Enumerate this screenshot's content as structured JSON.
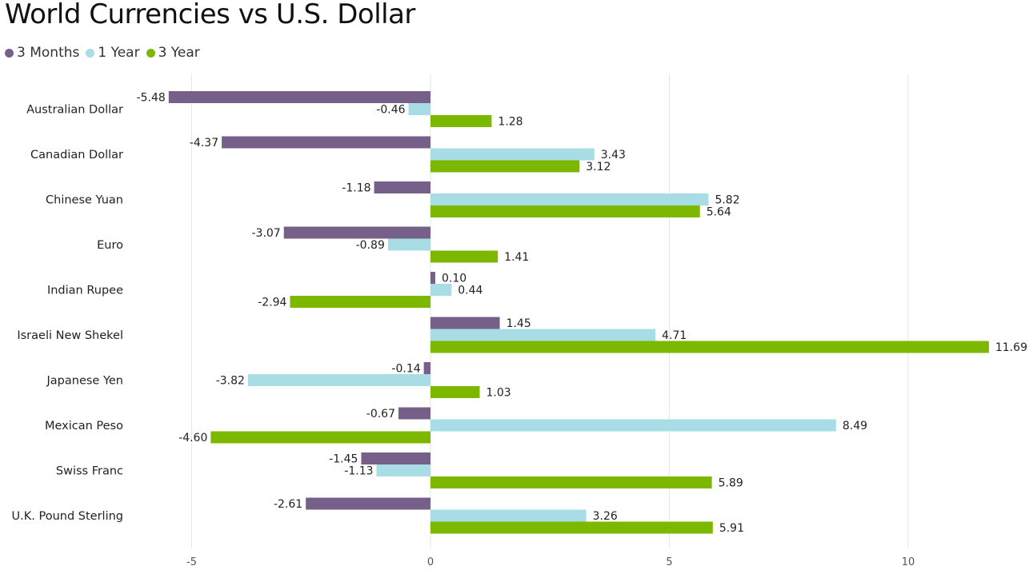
{
  "chart_data": {
    "type": "bar",
    "orientation": "horizontal",
    "title": "World Currencies vs U.S. Dollar",
    "categories": [
      "Australian Dollar",
      "Canadian Dollar",
      "Chinese Yuan",
      "Euro",
      "Indian Rupee",
      "Israeli New Shekel",
      "Japanese Yen",
      "Mexican Peso",
      "Swiss Franc",
      "U.K. Pound Sterling"
    ],
    "series": [
      {
        "name": "3 Months",
        "color": "#76608a",
        "values": [
          -5.48,
          -4.37,
          -1.18,
          -3.07,
          0.1,
          1.45,
          -0.14,
          -0.67,
          -1.45,
          -2.61
        ],
        "labels": [
          "-5.48",
          "-4.37",
          "-1.18",
          "-3.07",
          "0.10",
          "1.45",
          "-0.14",
          "-0.67",
          "-1.45",
          "-2.61"
        ]
      },
      {
        "name": "1 Year",
        "color": "#a8dde5",
        "values": [
          -0.46,
          3.43,
          5.82,
          -0.89,
          0.44,
          4.71,
          -3.82,
          8.49,
          -1.13,
          3.26
        ],
        "labels": [
          "-0.46",
          "3.43",
          "5.82",
          "-0.89",
          "0.44",
          "4.71",
          "-3.82",
          "8.49",
          "-1.13",
          "3.26"
        ]
      },
      {
        "name": "3 Year",
        "color": "#7cb800",
        "values": [
          1.28,
          3.12,
          5.64,
          1.41,
          -2.94,
          11.69,
          1.03,
          -4.6,
          5.89,
          5.91
        ],
        "labels": [
          "1.28",
          "3.12",
          "5.64",
          "1.41",
          "-2.94",
          "11.69",
          "1.03",
          "-4.60",
          "5.89",
          "5.91"
        ]
      }
    ],
    "x_ticks": [
      {
        "value": -5,
        "label": "-5"
      },
      {
        "value": 0,
        "label": "0"
      },
      {
        "value": 5,
        "label": "5"
      },
      {
        "value": 10,
        "label": "10"
      }
    ],
    "xlim": [
      -5.5,
      11.7
    ],
    "grid": true,
    "legend_position": "top-left"
  }
}
